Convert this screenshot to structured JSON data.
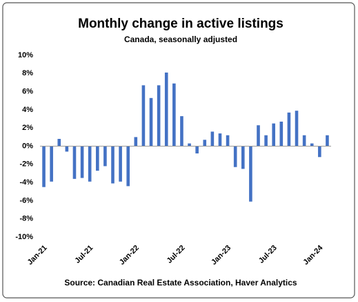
{
  "chart_data": {
    "type": "bar",
    "title": "Monthly change in active listings",
    "subtitle": "Canada, seasonally adjusted",
    "source": "Source: Canadian Real Estate Association, Haver Analytics",
    "categories": [
      "Jan-21",
      null,
      null,
      null,
      null,
      null,
      "Jul-21",
      null,
      null,
      null,
      null,
      null,
      "Jan-22",
      null,
      null,
      null,
      null,
      null,
      "Jul-22",
      null,
      null,
      null,
      null,
      null,
      "Jan-23",
      null,
      null,
      null,
      null,
      null,
      "Jul-23",
      null,
      null,
      null,
      null,
      null,
      "Jan-24",
      null
    ],
    "values": [
      -4.5,
      -3.9,
      0.8,
      -0.6,
      -3.6,
      -3.5,
      -3.9,
      -2.7,
      -2.2,
      -4.1,
      -3.9,
      -4.4,
      1.0,
      6.7,
      5.3,
      6.7,
      8.1,
      6.9,
      3.3,
      0.3,
      -0.8,
      0.7,
      1.6,
      1.4,
      1.2,
      -2.3,
      -2.5,
      -6.1,
      2.3,
      1.2,
      2.5,
      2.7,
      3.7,
      3.9,
      1.2,
      0.3,
      -1.2,
      1.2
    ],
    "color": "#4472c4",
    "ylim": [
      -10,
      10
    ],
    "yticks": [
      {
        "value": -10,
        "label": "-10%"
      },
      {
        "value": -8,
        "label": "-8%"
      },
      {
        "value": -6,
        "label": "-6%"
      },
      {
        "value": -4,
        "label": "-4%"
      },
      {
        "value": -2,
        "label": "-2%"
      },
      {
        "value": 0,
        "label": "0%"
      },
      {
        "value": 2,
        "label": "2%"
      },
      {
        "value": 4,
        "label": "4%"
      },
      {
        "value": 6,
        "label": "6%"
      },
      {
        "value": 8,
        "label": "8%"
      },
      {
        "value": 10,
        "label": "10%"
      }
    ],
    "grid": false
  }
}
